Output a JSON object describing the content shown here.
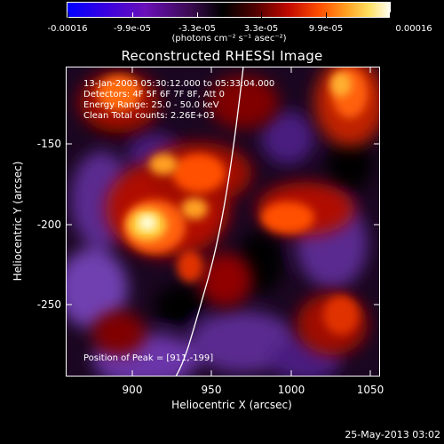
{
  "colorbar": {
    "tick_labels": [
      "-0.00016",
      "-9.9e-05",
      "-3.3e-05",
      "3.3e-05",
      "9.9e-05",
      "0.00016"
    ],
    "units_label": "(photons cm⁻² s⁻¹ asec⁻²)",
    "colors": [
      "#0000ff",
      "#4a00d8",
      "#7f20a0",
      "#000000",
      "#4a0000",
      "#b00000",
      "#ff3000",
      "#ff9000",
      "#ffd040",
      "#ffffc0",
      "#ffffff"
    ]
  },
  "plot": {
    "title": "Reconstructed RHESSI Image",
    "annotations": [
      "13-Jan-2003 05:30:12.000 to 05:33:04.000",
      "Detectors: 4F 5F 6F 7F 8F, Att 0",
      "Energy Range: 25.0 - 50.0 keV",
      "Clean    Total counts: 2.26E+03"
    ],
    "peak_label": "Position of Peak = [911,-199]",
    "x_axis": {
      "title": "Heliocentric X (arcsec)",
      "range": [
        860,
        1050
      ],
      "ticks": [
        "900",
        "950",
        "1000",
        "1050"
      ]
    },
    "y_axis": {
      "title": "Heliocentric Y (arcsec)",
      "range": [
        -295,
        -105
      ],
      "ticks": [
        "-150",
        "-200",
        "-250"
      ]
    }
  },
  "footer": {
    "date": "25-May-2013 03:02"
  }
}
